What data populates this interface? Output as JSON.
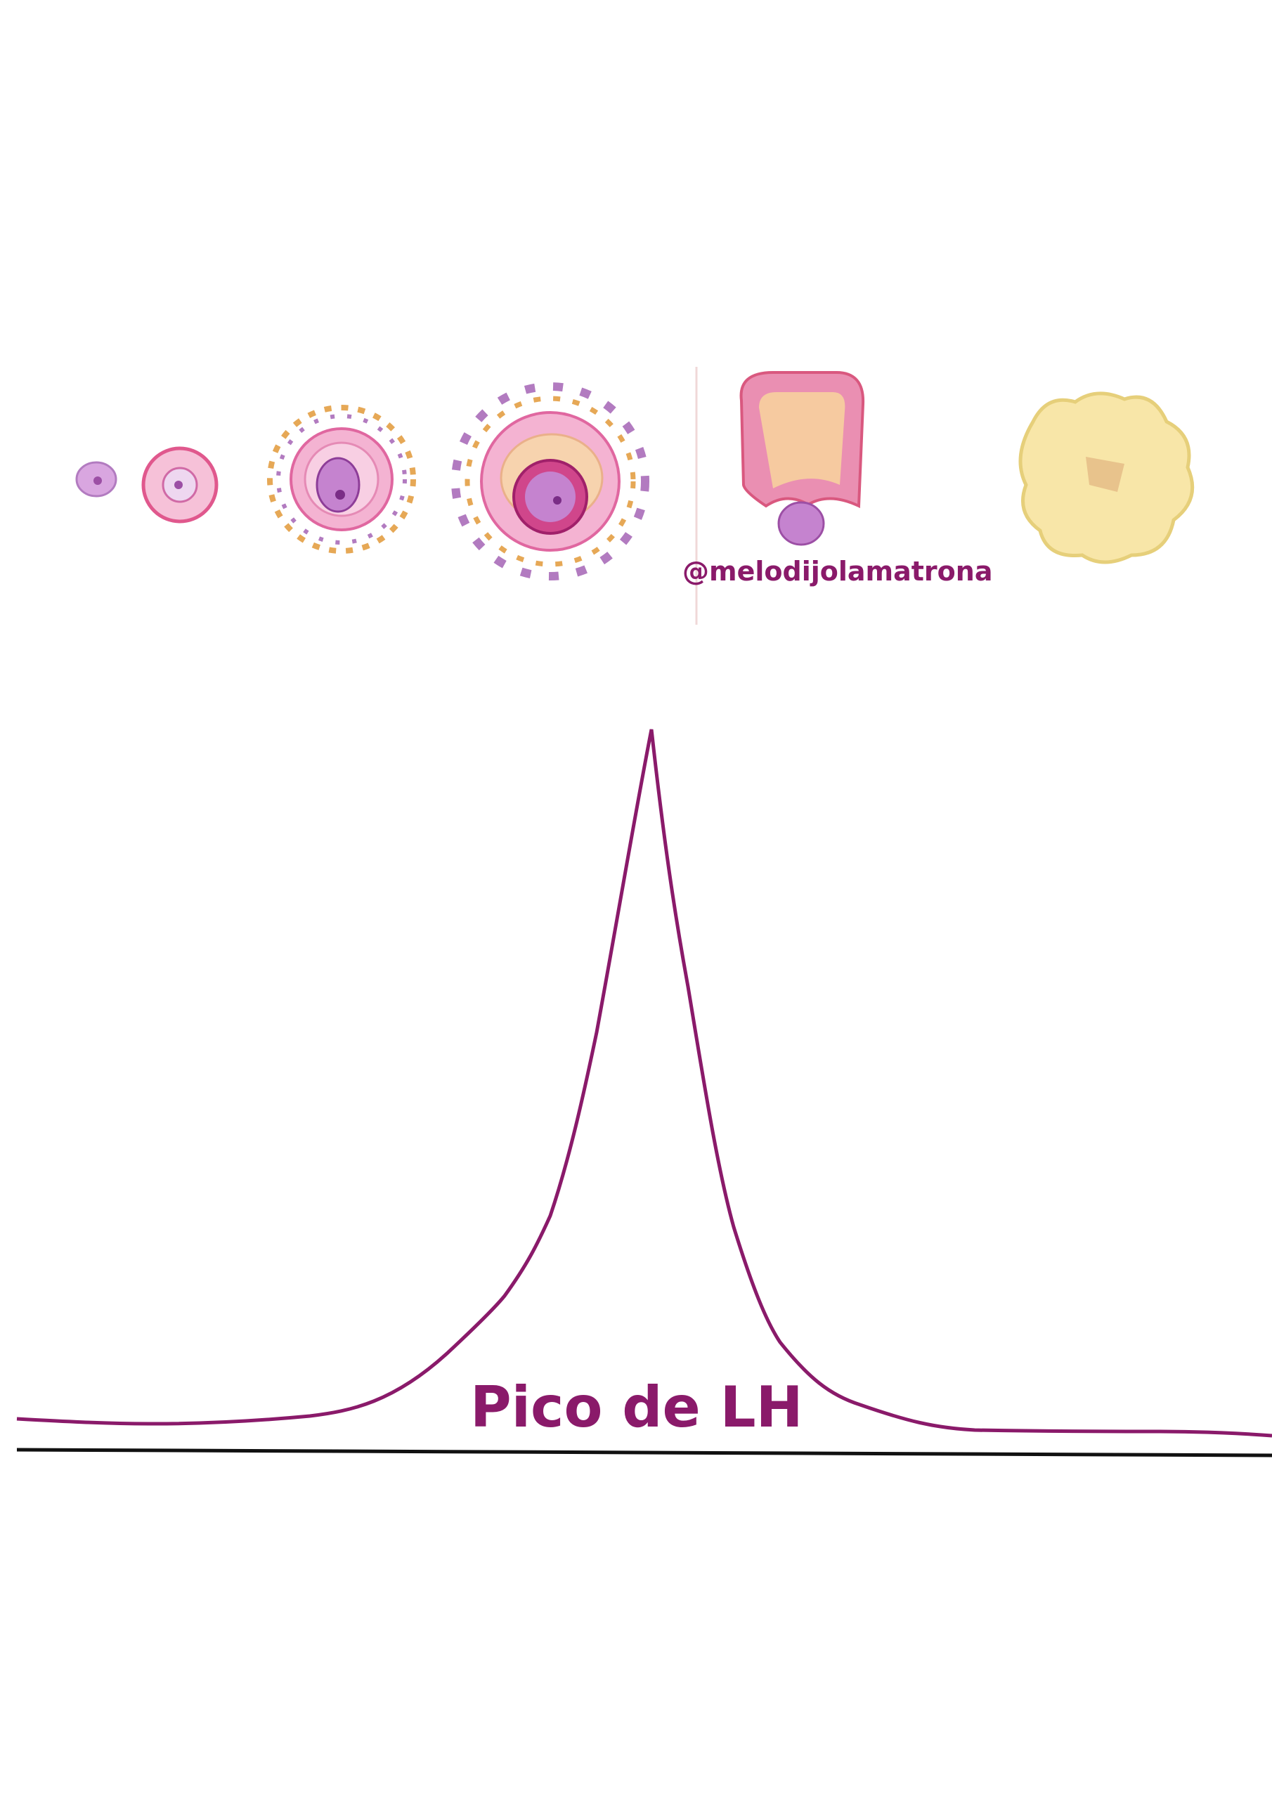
{
  "watermark": "@melodijolamatrona",
  "curve_label": "Pico de LH"
}
